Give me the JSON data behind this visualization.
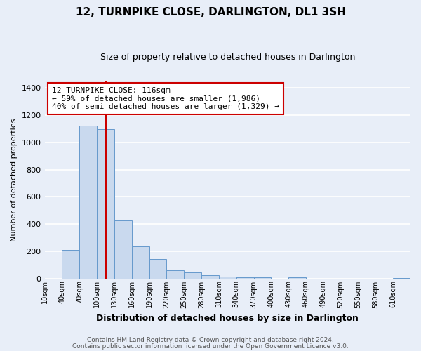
{
  "title": "12, TURNPIKE CLOSE, DARLINGTON, DL1 3SH",
  "subtitle": "Size of property relative to detached houses in Darlington",
  "xlabel": "Distribution of detached houses by size in Darlington",
  "ylabel": "Number of detached properties",
  "bar_labels": [
    "10sqm",
    "40sqm",
    "70sqm",
    "100sqm",
    "130sqm",
    "160sqm",
    "190sqm",
    "220sqm",
    "250sqm",
    "280sqm",
    "310sqm",
    "340sqm",
    "370sqm",
    "400sqm",
    "430sqm",
    "460sqm",
    "490sqm",
    "520sqm",
    "550sqm",
    "580sqm",
    "610sqm"
  ],
  "bar_values": [
    0,
    210,
    1120,
    1095,
    425,
    235,
    140,
    60,
    45,
    25,
    15,
    10,
    10,
    0,
    10,
    0,
    0,
    0,
    0,
    0,
    5
  ],
  "bar_color": "#c9d9ee",
  "bar_edgecolor": "#6699cc",
  "vline_x": 116,
  "vline_color": "#cc0000",
  "annotation_line1": "12 TURNPIKE CLOSE: 116sqm",
  "annotation_line2": "← 59% of detached houses are smaller (1,986)",
  "annotation_line3": "40% of semi-detached houses are larger (1,329) →",
  "annotation_box_edgecolor": "#cc0000",
  "annotation_box_facecolor": "#ffffff",
  "ylim": [
    0,
    1450
  ],
  "yticks": [
    0,
    200,
    400,
    600,
    800,
    1000,
    1200,
    1400
  ],
  "footer_line1": "Contains HM Land Registry data © Crown copyright and database right 2024.",
  "footer_line2": "Contains public sector information licensed under the Open Government Licence v3.0.",
  "background_color": "#e8eef8",
  "plot_bg_color": "#e8eef8",
  "grid_color": "#ffffff",
  "bin_width": 30
}
